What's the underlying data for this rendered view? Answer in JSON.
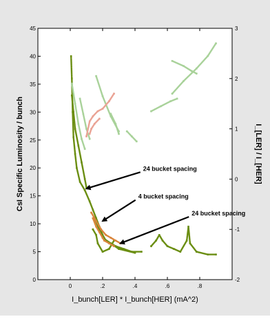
{
  "chart_data": {
    "type": "scatter",
    "title": "",
    "xlabel": "I_bunch[LER] * I_bunch[HER] (mA^2)",
    "ylabel": "CsI Specific Luminosity / bunch",
    "y2label": "I_[LER] / I_[HER]",
    "xlim": [
      -0.2,
      1.0
    ],
    "ylim": [
      0,
      45
    ],
    "y2lim": [
      -2,
      3
    ],
    "x_ticks": [
      {
        "value": 0.0,
        "label": "0"
      },
      {
        "value": 0.2,
        "label": ".2"
      },
      {
        "value": 0.4,
        "label": ".4"
      },
      {
        "value": 0.6,
        "label": ".6"
      },
      {
        "value": 0.8,
        "label": ".8"
      }
    ],
    "y_ticks": [
      {
        "value": 0,
        "label": "0"
      },
      {
        "value": 5,
        "label": "5"
      },
      {
        "value": 10,
        "label": "10"
      },
      {
        "value": 15,
        "label": "15"
      },
      {
        "value": 20,
        "label": "20"
      },
      {
        "value": 25,
        "label": "25"
      },
      {
        "value": 30,
        "label": "30"
      },
      {
        "value": 35,
        "label": "35"
      },
      {
        "value": 40,
        "label": "40"
      },
      {
        "value": 45,
        "label": "45"
      }
    ],
    "y2_ticks": [
      {
        "value": -2,
        "label": "-2"
      },
      {
        "value": -1,
        "label": "-1"
      },
      {
        "value": 0,
        "label": "0"
      },
      {
        "value": 1,
        "label": "1"
      },
      {
        "value": 2,
        "label": "2"
      },
      {
        "value": 3,
        "label": "3"
      }
    ],
    "grid": false,
    "series": [
      {
        "axis": "left",
        "color": "#6b8e12",
        "segments": [
          [
            [
              0.005,
              40.0
            ],
            [
              0.01,
              36.0
            ],
            [
              0.015,
              30.0
            ],
            [
              0.02,
              25.5
            ],
            [
              0.03,
              22.5
            ],
            [
              0.04,
              20.0
            ],
            [
              0.06,
              17.5
            ],
            [
              0.09,
              16.0
            ],
            [
              0.12,
              14.0
            ],
            [
              0.14,
              12.5
            ],
            [
              0.16,
              11.0
            ],
            [
              0.18,
              9.5
            ],
            [
              0.2,
              8.0
            ],
            [
              0.22,
              7.0
            ],
            [
              0.25,
              6.5
            ],
            [
              0.28,
              6.0
            ],
            [
              0.33,
              5.5
            ],
            [
              0.38,
              5.0
            ],
            [
              0.44,
              5.0
            ]
          ],
          [
            [
              0.01,
              33.0
            ],
            [
              0.02,
              30.0
            ],
            [
              0.03,
              27.0
            ],
            [
              0.05,
              24.0
            ],
            [
              0.07,
              21.0
            ],
            [
              0.09,
              18.0
            ],
            [
              0.1,
              16.5
            ]
          ],
          [
            [
              0.14,
              9.0
            ],
            [
              0.16,
              8.0
            ],
            [
              0.17,
              6.5
            ],
            [
              0.2,
              5.0
            ],
            [
              0.24,
              5.5
            ],
            [
              0.27,
              7.0
            ]
          ],
          [
            [
              0.15,
              11.0
            ],
            [
              0.2,
              7.5
            ],
            [
              0.3,
              5.5
            ],
            [
              0.4,
              4.8
            ]
          ],
          [
            [
              0.5,
              6.0
            ],
            [
              0.53,
              7.0
            ],
            [
              0.55,
              8.0
            ],
            [
              0.57,
              7.0
            ],
            [
              0.6,
              6.0
            ],
            [
              0.64,
              5.5
            ],
            [
              0.68,
              5.0
            ],
            [
              0.72,
              7.0
            ],
            [
              0.73,
              9.5
            ],
            [
              0.74,
              6.5
            ],
            [
              0.78,
              5.0
            ],
            [
              0.85,
              4.5
            ],
            [
              0.9,
              4.5
            ]
          ]
        ]
      },
      {
        "axis": "left",
        "color": "#d9853b",
        "segments": [
          [
            [
              0.13,
              12.0
            ],
            [
              0.16,
              10.5
            ],
            [
              0.19,
              9.0
            ],
            [
              0.22,
              8.0
            ],
            [
              0.25,
              7.5
            ],
            [
              0.28,
              7.0
            ],
            [
              0.31,
              6.5
            ]
          ],
          [
            [
              0.14,
              11.0
            ],
            [
              0.16,
              9.5
            ],
            [
              0.18,
              8.5
            ],
            [
              0.21,
              7.0
            ],
            [
              0.24,
              6.5
            ],
            [
              0.27,
              6.0
            ]
          ]
        ]
      },
      {
        "axis": "right",
        "color": "#a9d29a",
        "segments": [
          [
            [
              0.01,
              1.9
            ],
            [
              0.03,
              1.5
            ],
            [
              0.05,
              1.1
            ],
            [
              0.07,
              0.8
            ],
            [
              0.09,
              0.6
            ]
          ],
          [
            [
              0.06,
              1.6
            ],
            [
              0.08,
              1.3
            ],
            [
              0.1,
              1.0
            ],
            [
              0.12,
              0.8
            ]
          ],
          [
            [
              0.16,
              2.05
            ],
            [
              0.2,
              1.65
            ],
            [
              0.25,
              1.25
            ],
            [
              0.3,
              0.95
            ]
          ],
          [
            [
              0.25,
              1.3
            ],
            [
              0.28,
              1.1
            ],
            [
              0.3,
              0.9
            ]
          ],
          [
            [
              0.35,
              0.95
            ],
            [
              0.38,
              0.85
            ],
            [
              0.41,
              0.75
            ]
          ],
          [
            [
              0.5,
              1.35
            ],
            [
              0.56,
              1.45
            ],
            [
              0.62,
              1.55
            ],
            [
              0.66,
              1.6
            ]
          ],
          [
            [
              0.63,
              2.35
            ],
            [
              0.7,
              2.25
            ],
            [
              0.75,
              2.15
            ],
            [
              0.78,
              2.1
            ]
          ],
          [
            [
              0.63,
              1.7
            ],
            [
              0.7,
              1.95
            ],
            [
              0.78,
              2.2
            ],
            [
              0.85,
              2.45
            ],
            [
              0.9,
              2.7
            ]
          ]
        ]
      },
      {
        "axis": "right",
        "color": "#eaa395",
        "segments": [
          [
            [
              0.1,
              0.85
            ],
            [
              0.12,
              1.15
            ],
            [
              0.14,
              1.25
            ],
            [
              0.17,
              1.35
            ],
            [
              0.2,
              1.4
            ],
            [
              0.24,
              1.55
            ],
            [
              0.27,
              1.7
            ]
          ],
          [
            [
              0.12,
              0.9
            ],
            [
              0.13,
              1.0
            ],
            [
              0.15,
              1.1
            ],
            [
              0.18,
              1.2
            ]
          ]
        ]
      }
    ],
    "annotations": [
      {
        "text": "24 bucket spacing",
        "x": 0.45,
        "y": 19.5,
        "arrow_to": [
          0.1,
          16.3
        ]
      },
      {
        "text": "4 bucket spacing",
        "x": 0.42,
        "y": 14.5,
        "arrow_to": [
          0.2,
          10.5
        ]
      },
      {
        "text": "24 bucket spacing",
        "x": 0.75,
        "y": 11.5,
        "arrow_to": [
          0.31,
          6.5
        ]
      }
    ]
  }
}
